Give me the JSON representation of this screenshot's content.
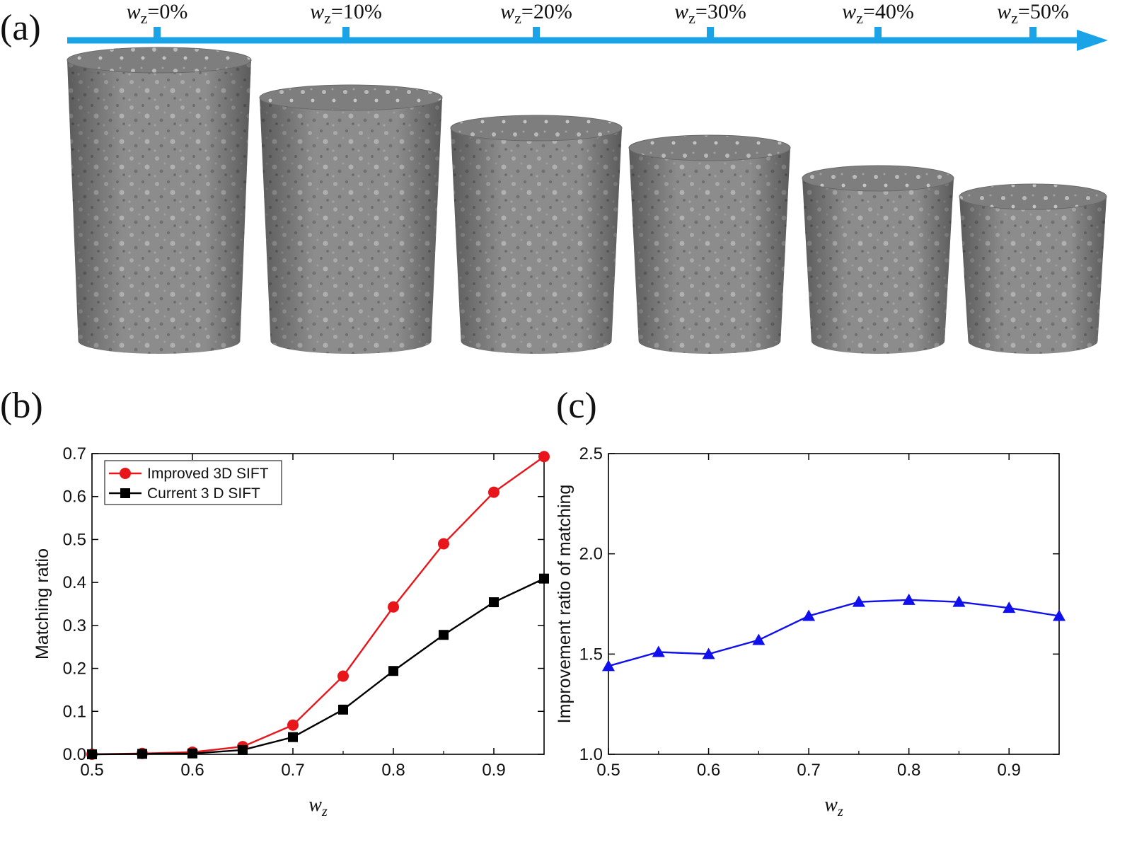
{
  "panel_a": {
    "label": "(a)",
    "scale_labels": [
      {
        "var": "w",
        "sub": "z",
        "text": "=0%"
      },
      {
        "var": "w",
        "sub": "z",
        "text": "=10%"
      },
      {
        "var": "w",
        "sub": "z",
        "text": "=20%"
      },
      {
        "var": "w",
        "sub": "z",
        "text": "=30%"
      },
      {
        "var": "w",
        "sub": "z",
        "text": "=40%"
      },
      {
        "var": "w",
        "sub": "z",
        "text": "=50%"
      }
    ],
    "arrow_color": "#1aa3e6",
    "specimen_color": "#8a8a8a",
    "specimen_count": 6
  },
  "chart_data": [
    {
      "panel": "(b)",
      "type": "line",
      "xlabel_var": "w",
      "xlabel_sub": "z",
      "ylabel": "Matching ratio",
      "xlim": [
        0.5,
        0.95
      ],
      "ylim": [
        0.0,
        0.7
      ],
      "xticks": [
        "0.5",
        "0.6",
        "0.7",
        "0.8",
        "0.9"
      ],
      "xtick_values": [
        0.5,
        0.6,
        0.7,
        0.8,
        0.9
      ],
      "yticks": [
        "0.0",
        "0.1",
        "0.2",
        "0.3",
        "0.4",
        "0.5",
        "0.6",
        "0.7"
      ],
      "ytick_values": [
        0.0,
        0.1,
        0.2,
        0.3,
        0.4,
        0.5,
        0.6,
        0.7
      ],
      "legend_position": "top-left",
      "x": [
        0.5,
        0.55,
        0.6,
        0.65,
        0.7,
        0.75,
        0.8,
        0.85,
        0.9,
        0.95
      ],
      "series": [
        {
          "name": "Improved 3D SIFT",
          "color": "#e8161b",
          "marker": "circle",
          "values": [
            0.0,
            0.002,
            0.005,
            0.018,
            0.068,
            0.182,
            0.343,
            0.49,
            0.61,
            0.693
          ]
        },
        {
          "name": "Current 3 D SIFT",
          "color": "#000000",
          "marker": "square",
          "values": [
            0.0,
            0.001,
            0.002,
            0.01,
            0.04,
            0.104,
            0.194,
            0.278,
            0.354,
            0.409
          ]
        }
      ]
    },
    {
      "panel": "(c)",
      "type": "line",
      "xlabel_var": "w",
      "xlabel_sub": "z",
      "ylabel": "Improvement ratio of matching",
      "xlim": [
        0.5,
        0.95
      ],
      "ylim": [
        1.0,
        2.5
      ],
      "xticks": [
        "0.5",
        "0.6",
        "0.7",
        "0.8",
        "0.9"
      ],
      "xtick_values": [
        0.5,
        0.6,
        0.7,
        0.8,
        0.9
      ],
      "yticks": [
        "1.0",
        "1.5",
        "2.0",
        "2.5"
      ],
      "ytick_values": [
        1.0,
        1.5,
        2.0,
        2.5
      ],
      "x": [
        0.5,
        0.55,
        0.6,
        0.65,
        0.7,
        0.75,
        0.8,
        0.85,
        0.9,
        0.95
      ],
      "series": [
        {
          "name": "",
          "color": "#1010ee",
          "marker": "triangle",
          "values": [
            1.44,
            1.51,
            1.5,
            1.57,
            1.69,
            1.76,
            1.77,
            1.76,
            1.73,
            1.69
          ]
        }
      ]
    }
  ]
}
